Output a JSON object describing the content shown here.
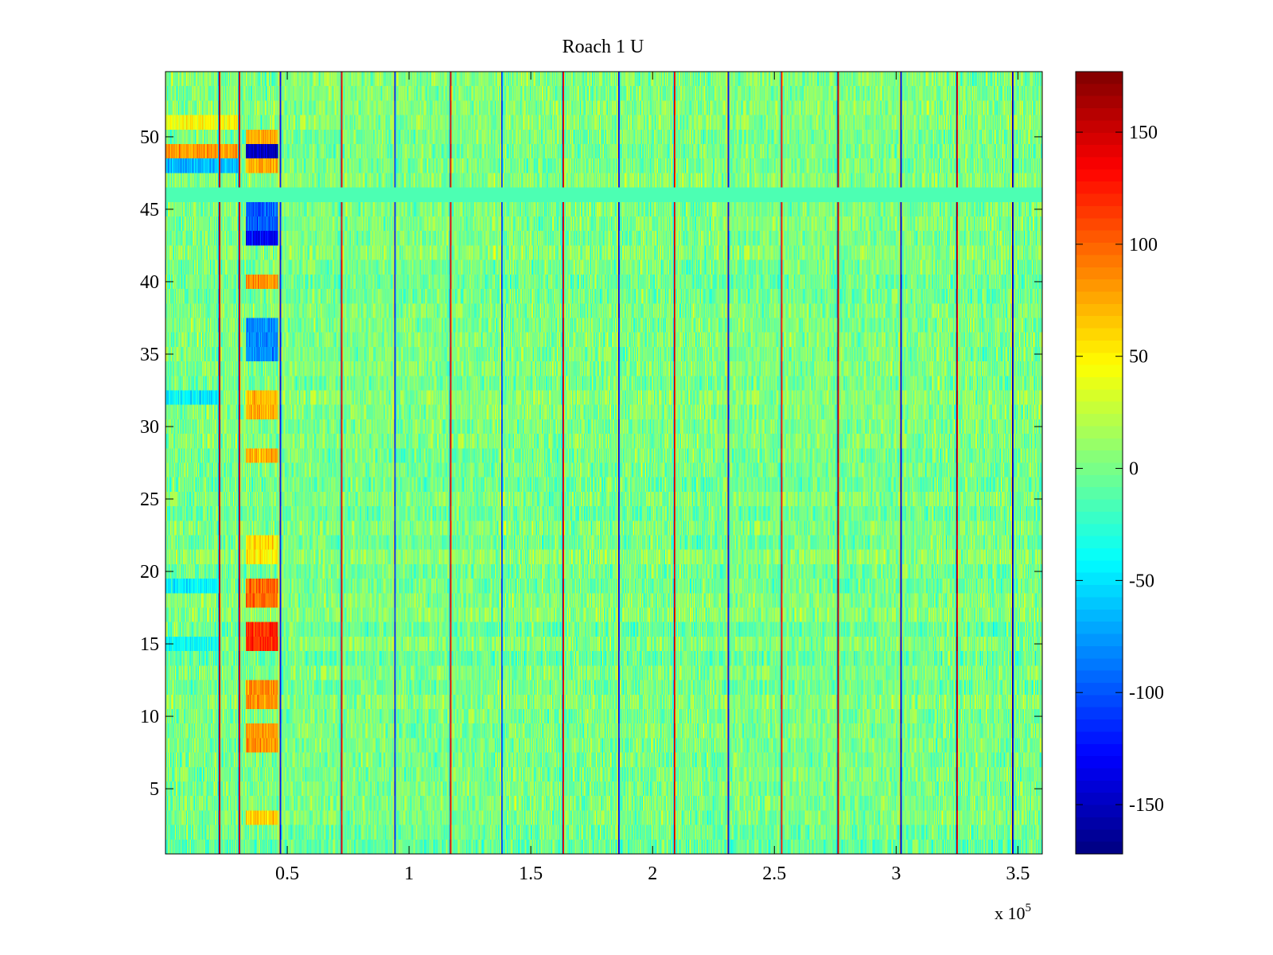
{
  "chart_data": {
    "type": "heatmap",
    "title": "Roach 1 U",
    "xlabel": "",
    "ylabel": "",
    "x_exponent_label": "x 10",
    "x_exponent_power": "5",
    "x_range": [
      0,
      3.6
    ],
    "y_range": [
      0.5,
      54.5
    ],
    "x_ticks": [
      0.5,
      1,
      1.5,
      2,
      2.5,
      3,
      3.5
    ],
    "x_tick_labels": [
      "0.5",
      "1",
      "1.5",
      "2",
      "2.5",
      "3",
      "3.5"
    ],
    "y_ticks": [
      5,
      10,
      15,
      20,
      25,
      30,
      35,
      40,
      45,
      50
    ],
    "y_tick_labels": [
      "5",
      "10",
      "15",
      "20",
      "25",
      "30",
      "35",
      "40",
      "45",
      "50"
    ],
    "rows": 54,
    "colormap": "jet",
    "color_range": [
      -172,
      177
    ],
    "colorbar_ticks": [
      150,
      100,
      50,
      0,
      -50,
      -100,
      -150
    ],
    "colorbar_tick_labels": [
      "150",
      "100",
      "50",
      "0",
      "-50",
      "-100",
      "-150"
    ],
    "background_value_mean": 0,
    "background_value_spread": 28,
    "vertical_stripes": [
      {
        "x": 0.22,
        "value": 170
      },
      {
        "x": 0.3,
        "value": 165
      },
      {
        "x": 0.47,
        "value": -140
      },
      {
        "x": 0.72,
        "value": 150
      },
      {
        "x": 0.94,
        "value": -120
      },
      {
        "x": 1.17,
        "value": 150
      },
      {
        "x": 1.38,
        "value": -110
      },
      {
        "x": 1.63,
        "value": 160
      },
      {
        "x": 1.86,
        "value": -130
      },
      {
        "x": 2.09,
        "value": 150
      },
      {
        "x": 2.31,
        "value": -140
      },
      {
        "x": 2.53,
        "value": 140
      },
      {
        "x": 2.76,
        "value": 170
      },
      {
        "x": 3.02,
        "value": -150
      },
      {
        "x": 3.25,
        "value": 165
      },
      {
        "x": 3.48,
        "value": -155
      }
    ],
    "highlight_blocks": [
      {
        "x0": 0.33,
        "x1": 0.46,
        "rows": [
          49
        ],
        "value": -150
      },
      {
        "x0": 0.33,
        "x1": 0.46,
        "rows": [
          50,
          48
        ],
        "value": 75
      },
      {
        "x0": 0.0,
        "x1": 0.3,
        "rows": [
          49
        ],
        "value": 80
      },
      {
        "x0": 0.0,
        "x1": 0.3,
        "rows": [
          48
        ],
        "value": -65
      },
      {
        "x0": 0.0,
        "x1": 0.3,
        "rows": [
          51
        ],
        "value": 45
      },
      {
        "x0": 0.33,
        "x1": 0.46,
        "rows": [
          45,
          44
        ],
        "value": -95
      },
      {
        "x0": 0.33,
        "x1": 0.46,
        "rows": [
          43
        ],
        "value": -130
      },
      {
        "x0": 0.33,
        "x1": 0.46,
        "rows": [
          40
        ],
        "value": 85
      },
      {
        "x0": 0.33,
        "x1": 0.46,
        "rows": [
          37,
          36,
          35
        ],
        "value": -80
      },
      {
        "x0": 0.33,
        "x1": 0.46,
        "rows": [
          32,
          31
        ],
        "value": 70
      },
      {
        "x0": 0.33,
        "x1": 0.46,
        "rows": [
          28
        ],
        "value": 75
      },
      {
        "x0": 0.33,
        "x1": 0.46,
        "rows": [
          22,
          21
        ],
        "value": 55
      },
      {
        "x0": 0.33,
        "x1": 0.46,
        "rows": [
          19,
          18
        ],
        "value": 100
      },
      {
        "x0": 0.33,
        "x1": 0.46,
        "rows": [
          16,
          15
        ],
        "value": 120
      },
      {
        "x0": 0.33,
        "x1": 0.46,
        "rows": [
          11,
          12
        ],
        "value": 85
      },
      {
        "x0": 0.33,
        "x1": 0.46,
        "rows": [
          9,
          8
        ],
        "value": 80
      },
      {
        "x0": 0.33,
        "x1": 0.46,
        "rows": [
          3
        ],
        "value": 60
      },
      {
        "x0": 0.0,
        "x1": 0.22,
        "rows": [
          32,
          19
        ],
        "value": -45
      },
      {
        "x0": 0.0,
        "x1": 0.22,
        "rows": [
          15
        ],
        "value": -40
      }
    ],
    "blank_rows": [
      46
    ],
    "grid": false,
    "legend": "colorbar-right"
  }
}
